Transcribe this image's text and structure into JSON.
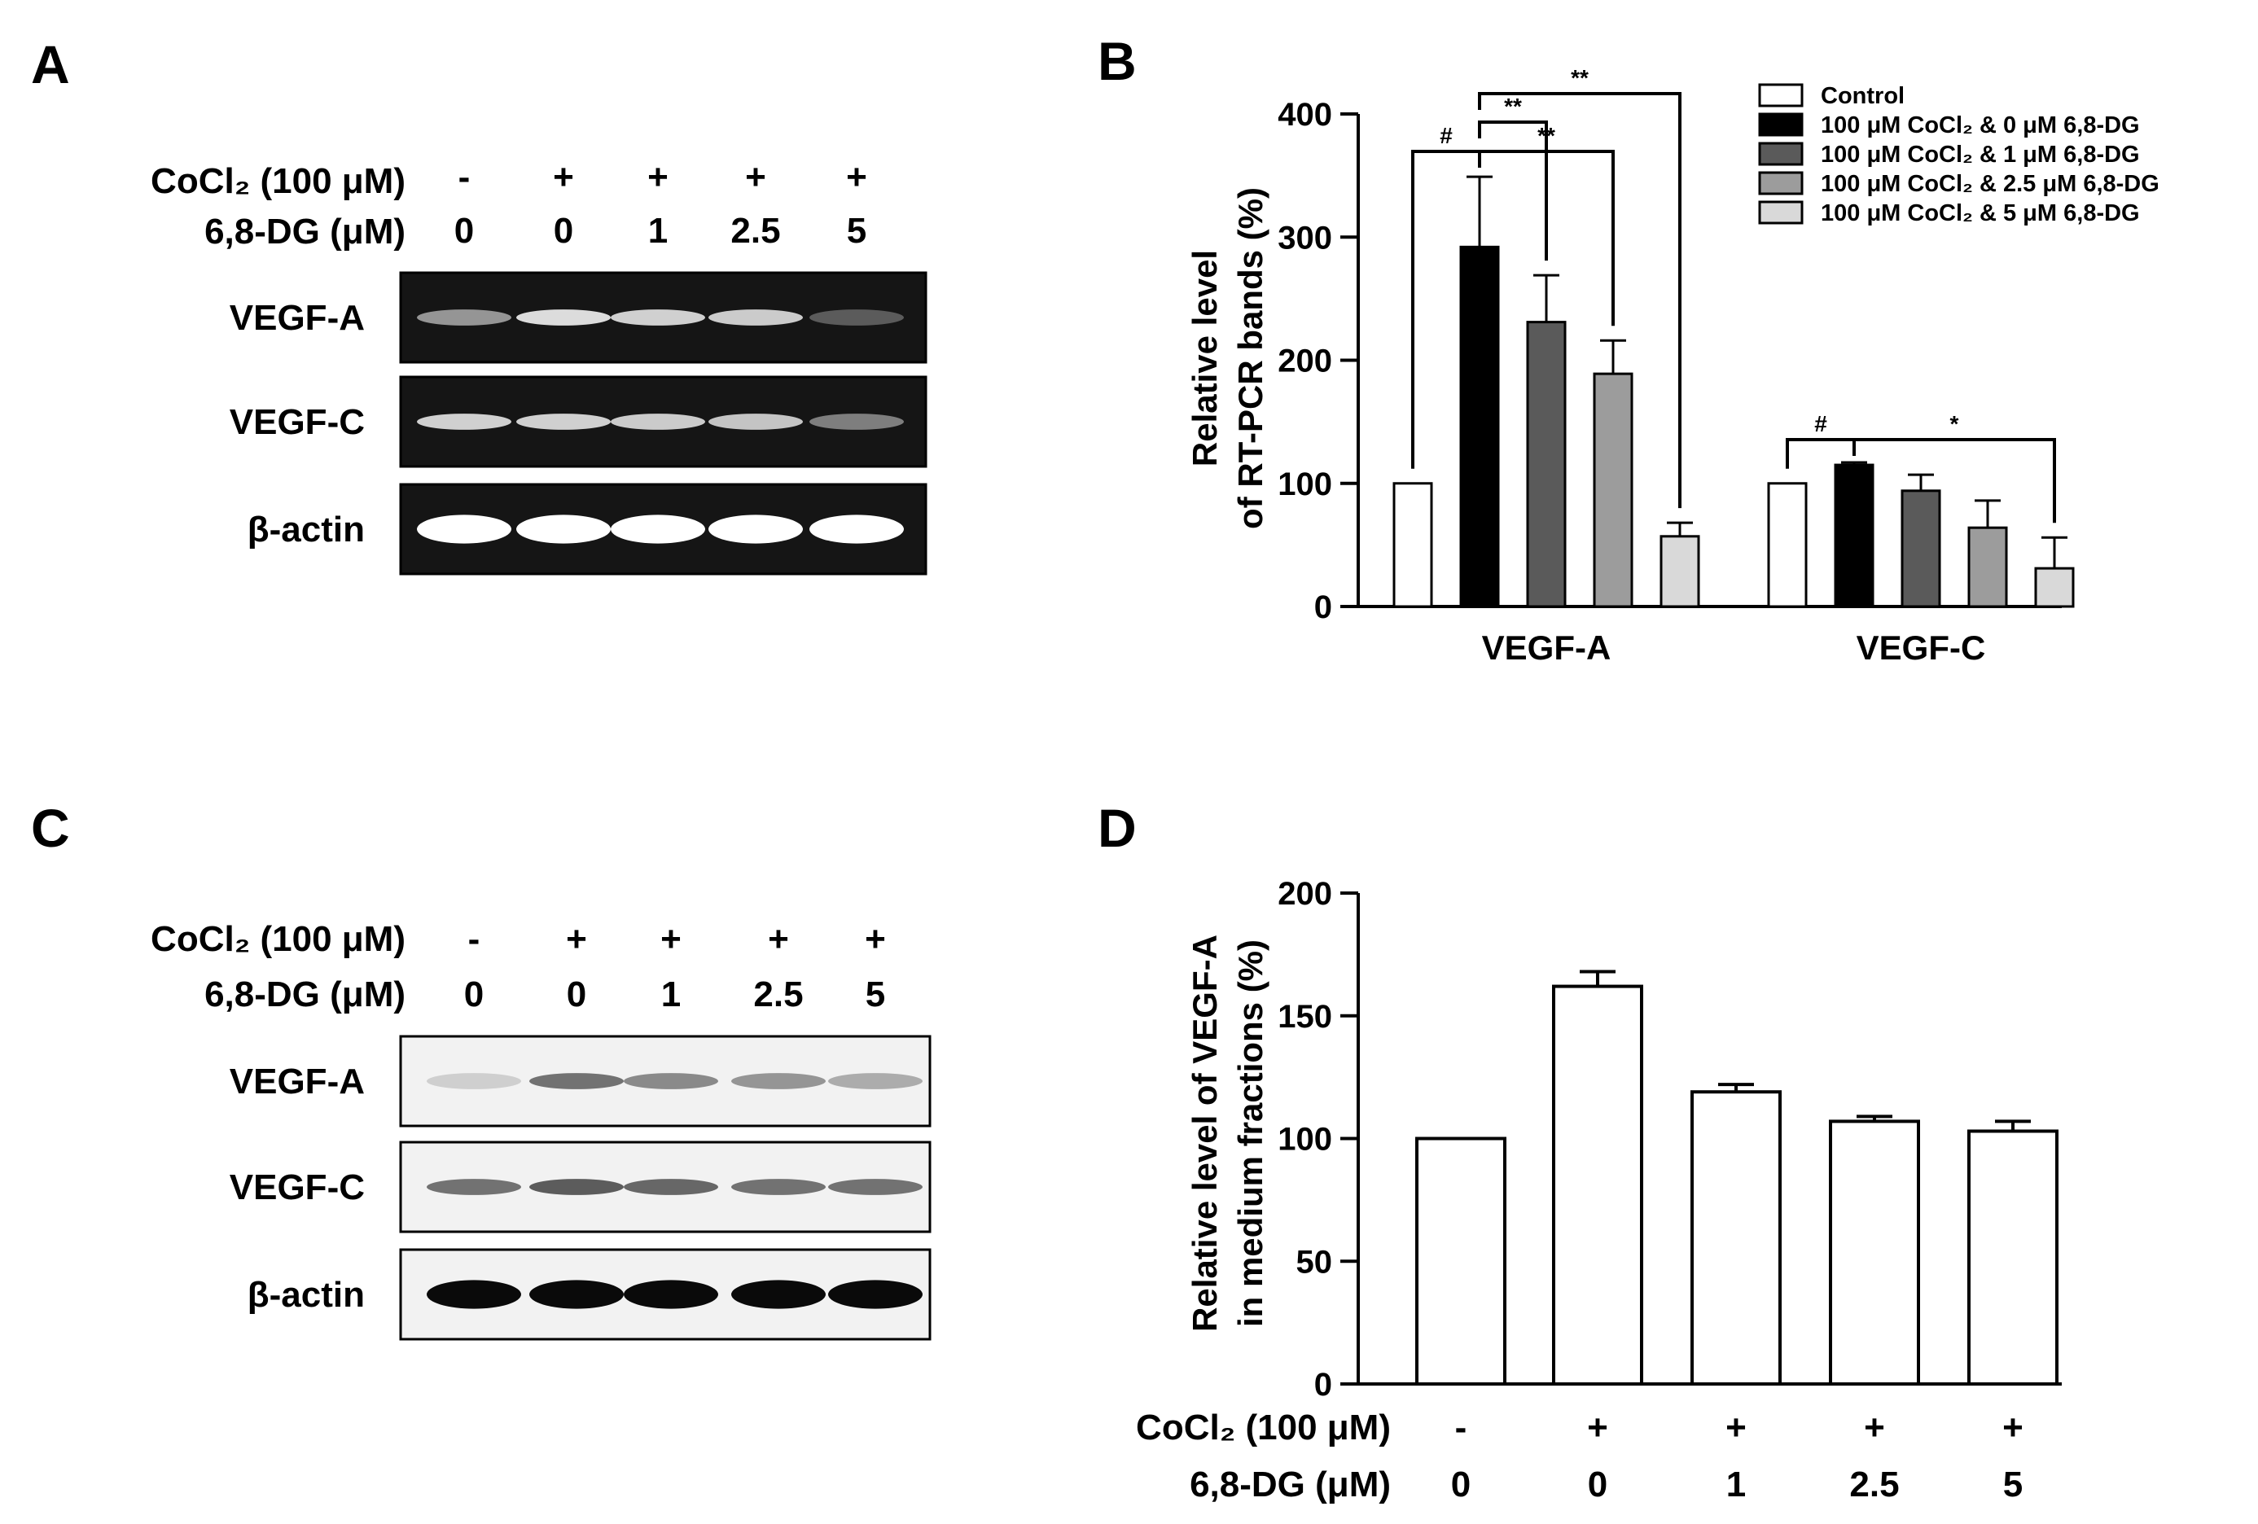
{
  "panels": {
    "A": {
      "label": "A",
      "treatments": {
        "cocl2_label": "CoCl₂ (100 μM)",
        "dg_label": "6,8-DG (μM)",
        "cocl2": [
          "-",
          "+",
          "+",
          "+",
          "+"
        ],
        "dg": [
          "0",
          "0",
          "1",
          "2.5",
          "5"
        ]
      },
      "bands": [
        {
          "label": "VEGF-A",
          "intensity": [
            0.55,
            0.85,
            0.8,
            0.78,
            0.3
          ]
        },
        {
          "label": "VEGF-C",
          "intensity": [
            0.8,
            0.8,
            0.78,
            0.75,
            0.45
          ]
        },
        {
          "label": "β-actin",
          "intensity": [
            1.0,
            1.0,
            1.0,
            1.0,
            1.0
          ]
        }
      ]
    },
    "C": {
      "label": "C",
      "treatments": {
        "cocl2_label": "CoCl₂ (100 μM)",
        "dg_label": "6,8-DG (μM)",
        "cocl2": [
          "-",
          "+",
          "+",
          "+",
          "+"
        ],
        "dg": [
          "0",
          "0",
          "1",
          "2.5",
          "5"
        ]
      },
      "bands": [
        {
          "label": "VEGF-A",
          "intensity": [
            0.15,
            0.55,
            0.45,
            0.4,
            0.3
          ]
        },
        {
          "label": "VEGF-C",
          "intensity": [
            0.55,
            0.65,
            0.6,
            0.55,
            0.55
          ]
        },
        {
          "label": "β-actin",
          "intensity": [
            1.0,
            1.0,
            1.0,
            1.0,
            1.0
          ]
        }
      ]
    }
  },
  "chart_data": [
    {
      "panel": "B",
      "type": "bar",
      "ylabel_lines": [
        "Relative level",
        "of RT-PCR bands (%)"
      ],
      "ylim": [
        0,
        400
      ],
      "yticks": [
        "0",
        "100",
        "200",
        "300",
        "400"
      ],
      "categories": [
        "VEGF-A",
        "VEGF-C"
      ],
      "series": [
        {
          "name": "Control",
          "values": [
            100,
            100
          ],
          "errors": [
            0,
            0
          ],
          "color": "#ffffff"
        },
        {
          "name": "100 μM CoCl₂ & 0 μM 6,8-DG",
          "values": [
            292,
            115
          ],
          "errors": [
            57,
            2
          ],
          "color": "#000000"
        },
        {
          "name": "100 μM CoCl₂ & 1 μM 6,8-DG",
          "values": [
            231,
            94
          ],
          "errors": [
            38,
            13
          ],
          "color": "#5a5a5a"
        },
        {
          "name": "100 μM CoCl₂ & 2.5 μM 6,8-DG",
          "values": [
            189,
            64
          ],
          "errors": [
            27,
            22
          ],
          "color": "#9c9c9c"
        },
        {
          "name": "100 μM CoCl₂ & 5 μM 6,8-DG",
          "values": [
            57,
            31
          ],
          "errors": [
            11,
            25
          ],
          "color": "#d9d9d9"
        }
      ],
      "legend_position": "top-right",
      "significance": [
        {
          "category": 0,
          "from": 0,
          "to": 1,
          "label": "#"
        },
        {
          "category": 0,
          "from": 1,
          "to": 2,
          "label": "**"
        },
        {
          "category": 0,
          "from": 1,
          "to": 3,
          "label": "**"
        },
        {
          "category": 0,
          "from": 1,
          "to": 4,
          "label": "**"
        },
        {
          "category": 1,
          "from": 0,
          "to": 1,
          "label": "#"
        },
        {
          "category": 1,
          "from": 1,
          "to": 4,
          "label": "*"
        }
      ]
    },
    {
      "panel": "D",
      "type": "bar",
      "ylabel_lines": [
        "Relative level of VEGF-A",
        "in medium fractions (%)"
      ],
      "ylim": [
        0,
        200
      ],
      "yticks": [
        "0",
        "50",
        "100",
        "150",
        "200"
      ],
      "categories": [
        "0",
        "0",
        "1",
        "2.5",
        "5"
      ],
      "values": [
        100,
        162,
        119,
        107,
        103
      ],
      "errors": [
        0,
        6,
        3,
        2,
        4
      ],
      "bar_color": "#ffffff",
      "row_labels": {
        "cocl2_label": "CoCl₂ (100 μM)",
        "dg_label": "6,8-DG (μM)",
        "cocl2": [
          "-",
          "+",
          "+",
          "+",
          "+"
        ],
        "dg": [
          "0",
          "0",
          "1",
          "2.5",
          "5"
        ]
      }
    }
  ]
}
